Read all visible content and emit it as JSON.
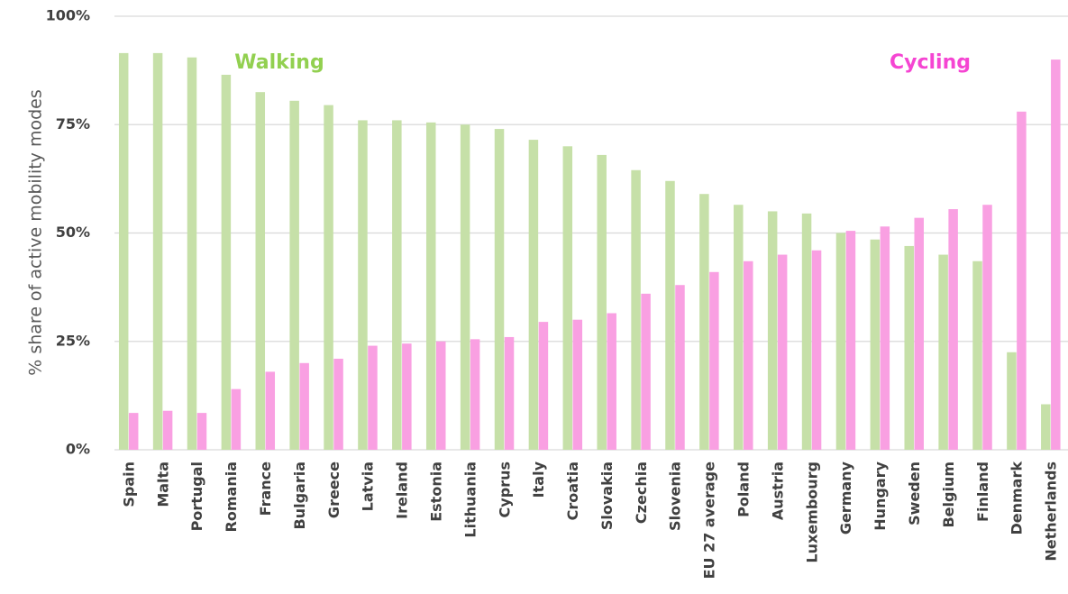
{
  "chart_data": {
    "type": "bar",
    "y_label": "% share of active mobility modes",
    "categories": [
      "Spain",
      "Malta",
      "Portugal",
      "Romania",
      "France",
      "Bulgaria",
      "Greece",
      "Latvia",
      "Ireland",
      "Estonia",
      "Lithuania",
      "Cyprus",
      "Italy",
      "Croatia",
      "Slovakia",
      "Czechia",
      "Slovenia",
      "EU 27 average",
      "Poland",
      "Austria",
      "Luxembourg",
      "Germany",
      "Hungary",
      "Sweden",
      "Belgium",
      "Finland",
      "Denmark",
      "Netherlands"
    ],
    "series": [
      {
        "name": "Walking",
        "color": "#c6e0a8",
        "label_color": "#92d050",
        "values": [
          91.5,
          91.5,
          90.5,
          86.5,
          82.5,
          80.5,
          79.5,
          76,
          76,
          75.5,
          75,
          74,
          71.5,
          70,
          68,
          64.5,
          62,
          59,
          56.5,
          55,
          54.5,
          50,
          48.5,
          47,
          45,
          43.5,
          22.5,
          10.5
        ]
      },
      {
        "name": "Cycling",
        "color": "#f9a0e2",
        "label_color": "#f545d2",
        "values": [
          8.5,
          9,
          8.5,
          14,
          18,
          20,
          21,
          24,
          24.5,
          25,
          25.5,
          26,
          29.5,
          30,
          31.5,
          36,
          38,
          41,
          43.5,
          45,
          46,
          50.5,
          51.5,
          53.5,
          55.5,
          56.5,
          78,
          90
        ]
      }
    ],
    "ylim": [
      0,
      100
    ],
    "yticks": [
      {
        "value": 0,
        "label": "0%"
      },
      {
        "value": 25,
        "label": "25%"
      },
      {
        "value": 50,
        "label": "50%"
      },
      {
        "value": 75,
        "label": "75%"
      },
      {
        "value": 100,
        "label": "100%"
      }
    ],
    "grid": true
  }
}
